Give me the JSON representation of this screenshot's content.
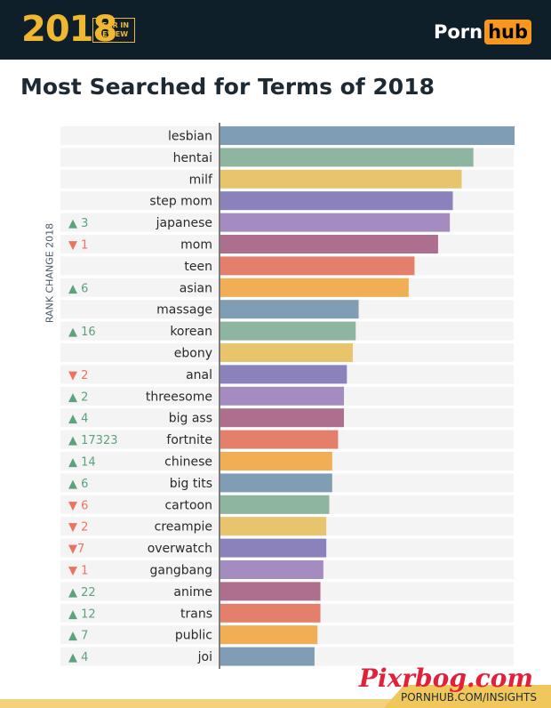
{
  "header": {
    "year": "2018",
    "badge_line1": "YEAR IN",
    "badge_line2": "REVIEW",
    "brand_part1": "Porn",
    "brand_part2": "hub"
  },
  "title": "Most Searched for Terms of 2018",
  "watermark": "Pixrbog.com",
  "footer": {
    "link": "PORNHUB.COM/INSIGHTS"
  },
  "chart_data": {
    "type": "bar",
    "orientation": "horizontal",
    "title": "Most Searched for Terms of 2018",
    "y_axis_title": "RANK CHANGE 2018",
    "value_scale": "relative search volume (no numeric axis shown)",
    "grid": false,
    "categories": [
      "lesbian",
      "hentai",
      "milf",
      "step mom",
      "japanese",
      "mom",
      "teen",
      "asian",
      "massage",
      "korean",
      "ebony",
      "anal",
      "threesome",
      "big ass",
      "fortnite",
      "chinese",
      "big tits",
      "cartoon",
      "creampie",
      "overwatch",
      "gangbang",
      "anime",
      "trans",
      "public",
      "joi"
    ],
    "values": [
      100,
      86,
      82,
      79,
      78,
      74,
      66,
      64,
      47,
      46,
      45,
      43,
      42,
      42,
      40,
      38,
      38,
      37,
      36,
      36,
      35,
      34,
      34,
      33,
      32
    ],
    "rank_change": [
      "",
      "",
      "",
      "",
      "▲ 3",
      "▼ 1",
      "",
      "▲ 6",
      "",
      "▲ 16",
      "",
      "▼ 2",
      "▲ 2",
      "▲ 4",
      "▲ 17323",
      "▲ 14",
      "▲ 6",
      "▼ 6",
      "▼ 2",
      "▼7",
      "▼ 1",
      "▲ 22",
      "▲ 12",
      "▲ 7",
      "▲ 4"
    ],
    "colors": [
      "#7f9db5",
      "#8db59f",
      "#e8c46d",
      "#8b82bb",
      "#a48bc0",
      "#ae6f8e",
      "#e47f6b",
      "#f2ae54"
    ],
    "up_color": "#5aa37c",
    "down_color": "#e9745f"
  }
}
